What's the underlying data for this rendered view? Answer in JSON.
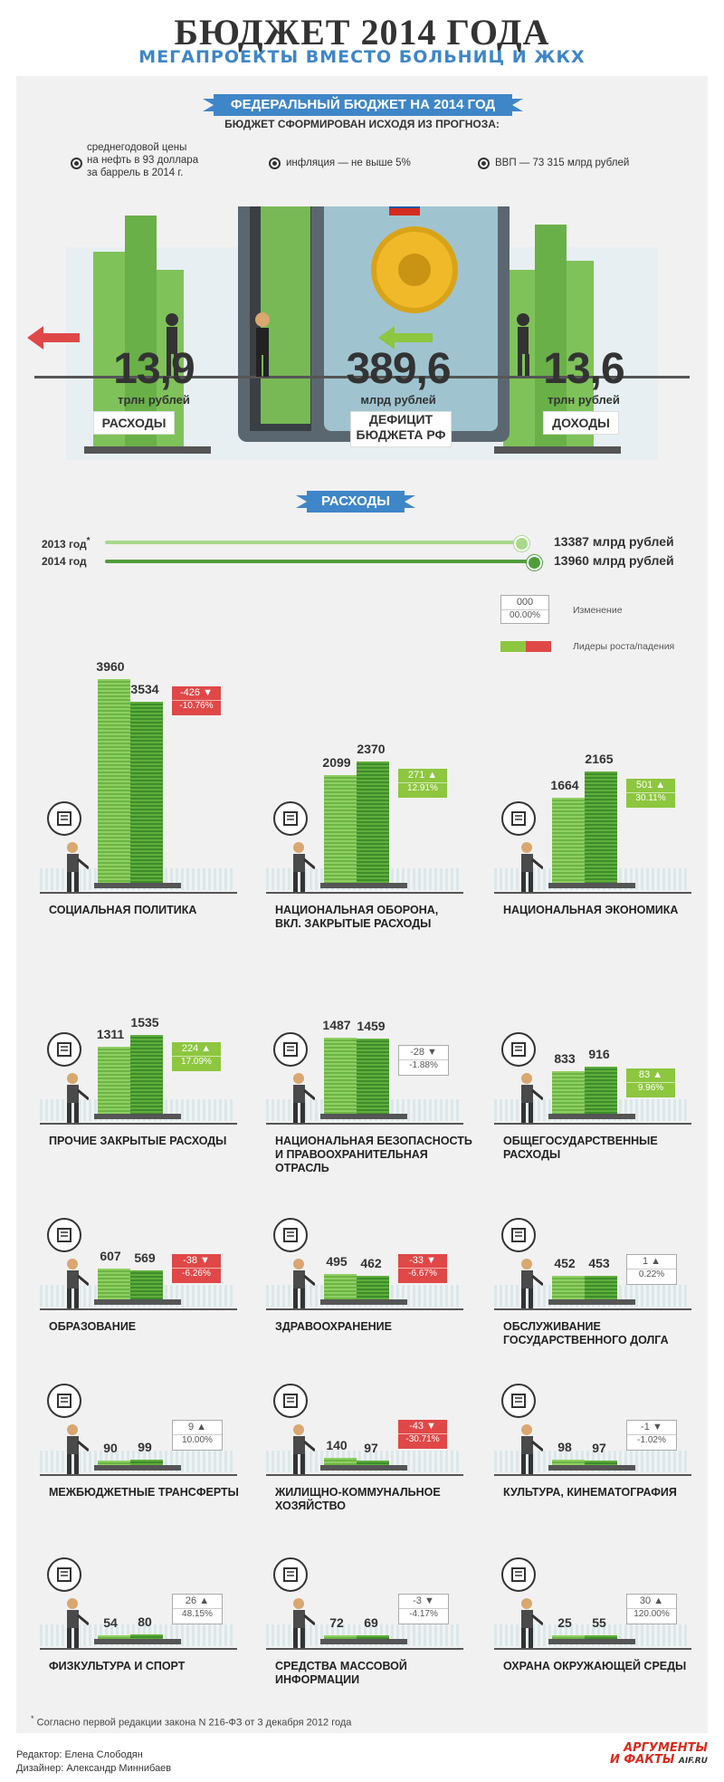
{
  "header": {
    "title": "БЮДЖЕТ 2014 ГОДА",
    "subtitle": "МЕГАПРОЕКТЫ ВМЕСТО БОЛЬНИЦ И ЖКХ"
  },
  "federal": {
    "ribbon": "ФЕДЕРАЛЬНЫЙ БЮДЖЕТ НА 2014 ГОД",
    "forecast_note": "БЮДЖЕТ СФОРМИРОВАН ИСХОДЯ ИЗ ПРОГНОЗА:",
    "conditions": [
      {
        "line1": "среднегодовой цены",
        "line2": "на нефть в 93 доллара",
        "line3": "за баррель в 2014 г."
      },
      {
        "line1": "инфляция — не выше 5%"
      },
      {
        "line1": "ВВП — 73 315 млрд рублей"
      }
    ],
    "expenses": {
      "value": "13,9",
      "unit": "трлн рублей",
      "tag": "РАСХОДЫ"
    },
    "deficit": {
      "value": "389,6",
      "unit": "млрд рублей",
      "tag_line1": "ДЕФИЦИТ",
      "tag_line2": "БЮДЖЕТА РФ"
    },
    "income": {
      "value": "13,6",
      "unit": "трлн рублей",
      "tag": "ДОХОДЫ"
    }
  },
  "spending": {
    "ribbon": "РАСХОДЫ",
    "totals": [
      {
        "year": "2013 год",
        "mark": "*",
        "value": "13387 млрд рублей"
      },
      {
        "year": "2014 год",
        "mark": "",
        "value": "13960 млрд рублей"
      }
    ]
  },
  "legend": {
    "box_value": "000",
    "box_pct": "00.00%",
    "change_label": "Изменение",
    "leaders_label": "Лидеры роста/падения"
  },
  "colors": {
    "accent": "#3f86c8",
    "up": "#8dc63f",
    "down": "#e04848",
    "bar_light": "#8fcf63",
    "bar_dark": "#3d8d2b"
  },
  "chart_data": {
    "type": "bar",
    "unit": "млрд рублей",
    "series": [
      {
        "name": "2013",
        "values": [
          3960,
          2099,
          1664,
          1311,
          1487,
          833,
          607,
          495,
          452,
          90,
          140,
          98,
          54,
          72,
          25
        ]
      },
      {
        "name": "2014",
        "values": [
          3534,
          2370,
          2165,
          1535,
          1459,
          916,
          569,
          462,
          453,
          99,
          97,
          97,
          80,
          69,
          55
        ]
      }
    ],
    "categories": [
      {
        "label1": "СОЦИАЛЬНАЯ ПОЛИТИКА",
        "label2": "",
        "label3": "",
        "v2013": 3960,
        "v2014": 3534,
        "change": "-426",
        "pct": "-10.76%",
        "dir": "down",
        "leader": true,
        "icon": "people-icon"
      },
      {
        "label1": "НАЦИОНАЛЬНАЯ ОБОРОНА,",
        "label2": "ВКЛ. ЗАКРЫТЫЕ РАСХОДЫ",
        "label3": "",
        "v2013": 2099,
        "v2014": 2370,
        "change": "271",
        "pct": "12.91%",
        "dir": "up",
        "leader": true,
        "icon": "tank-icon"
      },
      {
        "label1": "НАЦИОНАЛЬНАЯ ЭКОНОМИКА",
        "label2": "",
        "label3": "",
        "v2013": 1664,
        "v2014": 2165,
        "change": "501",
        "pct": "30.11%",
        "dir": "up",
        "leader": true,
        "icon": "factory-icon"
      },
      {
        "label1": "ПРОЧИЕ ЗАКРЫТЫЕ РАСХОДЫ",
        "label2": "",
        "label3": "",
        "v2013": 1311,
        "v2014": 1535,
        "change": "224",
        "pct": "17.09%",
        "dir": "up",
        "leader": true,
        "icon": "lock-icon"
      },
      {
        "label1": "НАЦИОНАЛЬНАЯ БЕЗОПАСНОСТЬ",
        "label2": "И ПРАВООХРАНИТЕЛЬНАЯ",
        "label3": "ОТРАСЛЬ",
        "v2013": 1487,
        "v2014": 1459,
        "change": "-28",
        "pct": "-1.88%",
        "dir": "down",
        "leader": false,
        "icon": "shield-icon"
      },
      {
        "label1": "ОБЩЕГОСУДАРСТВЕННЫЕ",
        "label2": "РАСХОДЫ",
        "label3": "",
        "v2013": 833,
        "v2014": 916,
        "change": "83",
        "pct": "9.96%",
        "dir": "up",
        "leader": true,
        "icon": "buildings-icon"
      },
      {
        "label1": "ОБРАЗОВАНИЕ",
        "label2": "",
        "label3": "",
        "v2013": 607,
        "v2014": 569,
        "change": "-38",
        "pct": "-6.26%",
        "dir": "down",
        "leader": true,
        "icon": "book-icon"
      },
      {
        "label1": "ЗДРАВООХРАНЕНИЕ",
        "label2": "",
        "label3": "",
        "v2013": 495,
        "v2014": 462,
        "change": "-33",
        "pct": "-6.67%",
        "dir": "down",
        "leader": true,
        "icon": "medical-cross-icon"
      },
      {
        "label1": "ОБСЛУЖИВАНИЕ",
        "label2": "ГОСУДАРСТВЕННОГО ДОЛГА",
        "label3": "",
        "v2013": 452,
        "v2014": 453,
        "change": "1",
        "pct": "0.22%",
        "dir": "up",
        "leader": false,
        "icon": "debt-icon"
      },
      {
        "label1": "МЕЖБЮДЖЕТНЫЕ ТРАНСФЕРТЫ",
        "label2": "",
        "label3": "",
        "v2013": 90,
        "v2014": 99,
        "change": "9",
        "pct": "10.00%",
        "dir": "up",
        "leader": false,
        "icon": "transfer-icon"
      },
      {
        "label1": "ЖИЛИЩНО-КОММУНАЛЬНОЕ",
        "label2": "ХОЗЯЙСТВО",
        "label3": "",
        "v2013": 140,
        "v2014": 97,
        "change": "-43",
        "pct": "-30.71%",
        "dir": "down",
        "leader": true,
        "icon": "apartment-icon"
      },
      {
        "label1": "КУЛЬТУРА, КИНЕМАТОГРАФИЯ",
        "label2": "",
        "label3": "",
        "v2013": 98,
        "v2014": 97,
        "change": "-1",
        "pct": "-1.02%",
        "dir": "down",
        "leader": false,
        "icon": "film-camera-icon"
      },
      {
        "label1": "ФИЗКУЛЬТУРА И СПОРТ",
        "label2": "",
        "label3": "",
        "v2013": 54,
        "v2014": 80,
        "change": "26",
        "pct": "48.15%",
        "dir": "up",
        "leader": false,
        "icon": "dumbbell-icon"
      },
      {
        "label1": "СРЕДСТВА МАССОВОЙ",
        "label2": "ИНФОРМАЦИИ",
        "label3": "",
        "v2013": 72,
        "v2014": 69,
        "change": "-3",
        "pct": "-4.17%",
        "dir": "down",
        "leader": false,
        "icon": "newspaper-icon"
      },
      {
        "label1": "ОХРАНА ОКРУЖАЮЩЕЙ СРЕДЫ",
        "label2": "",
        "label3": "",
        "v2013": 25,
        "v2014": 55,
        "change": "30",
        "pct": "120.00%",
        "dir": "up",
        "leader": false,
        "icon": "tree-icon"
      }
    ]
  },
  "footer": {
    "footnote": "Согласно первой редакции закона N 216-ФЗ от 3 декабря 2012 года",
    "footnote_mark": "*",
    "editor": "Редактор: Елена Слободян",
    "designer": "Дизайнер: Александр Миннибаев",
    "logo_line1": "АРГУМЕНТЫ",
    "logo_line2": "И ФАКТЫ",
    "logo_site": "AIF.RU"
  }
}
